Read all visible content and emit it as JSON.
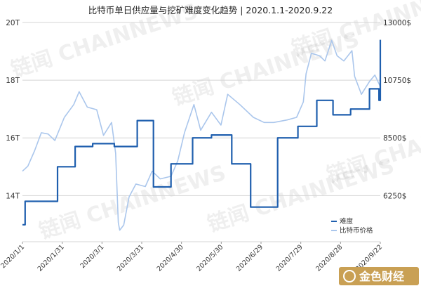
{
  "chart_data": {
    "type": "line",
    "title": "比特币单日供应量与挖矿难度变化趋势 | 2020.1.1-2020.9.22",
    "x_tick_labels": [
      "2020/1/1",
      "2020/1/31",
      "2020/3/1",
      "2020/3/31",
      "2020/4/30",
      "2020/5/30",
      "2020/6/29",
      "2020/7/29",
      "2020/8/28",
      "2020/9/22"
    ],
    "x_range": [
      "2020-01-01",
      "2020-09-22"
    ],
    "y_left": {
      "ticks": [
        "20T",
        "18T",
        "16T",
        "14T"
      ],
      "tick_values": [
        20,
        18,
        16,
        14
      ],
      "range": [
        12.4,
        20
      ],
      "unit": "T"
    },
    "y_right": {
      "ticks": [
        "13000$",
        "10750$",
        "8500$",
        "6250$"
      ],
      "tick_values": [
        13000,
        10750,
        8500,
        6250
      ],
      "range": [
        4450,
        13000
      ],
      "unit": "$"
    },
    "grid": true,
    "legend_position": "bottom-right",
    "series": [
      {
        "name": "难度",
        "axis": "left",
        "color": "#1f5fae",
        "step": true,
        "x": [
          "2020-01-01",
          "2020-01-03",
          "2020-01-14",
          "2020-01-27",
          "2020-02-09",
          "2020-02-22",
          "2020-03-09",
          "2020-03-26",
          "2020-04-07",
          "2020-04-20",
          "2020-05-06",
          "2020-05-20",
          "2020-06-04",
          "2020-06-18",
          "2020-07-08",
          "2020-07-23",
          "2020-08-06",
          "2020-08-18",
          "2020-08-31",
          "2020-09-14",
          "2020-09-21",
          "2020-09-22"
        ],
        "y": [
          12.99,
          13.8,
          13.8,
          15.0,
          15.7,
          15.8,
          15.7,
          16.6,
          14.3,
          15.1,
          16.0,
          16.1,
          15.1,
          13.6,
          16.0,
          16.4,
          17.3,
          16.8,
          17.0,
          17.7,
          17.3,
          19.4
        ]
      },
      {
        "name": "比特币价格",
        "axis": "right",
        "color": "#aac6ec",
        "step": false,
        "x": [
          "2020-01-01",
          "2020-01-05",
          "2020-01-10",
          "2020-01-15",
          "2020-01-20",
          "2020-01-25",
          "2020-02-01",
          "2020-02-08",
          "2020-02-12",
          "2020-02-18",
          "2020-02-25",
          "2020-03-01",
          "2020-03-07",
          "2020-03-10",
          "2020-03-12",
          "2020-03-13",
          "2020-03-16",
          "2020-03-20",
          "2020-03-25",
          "2020-04-01",
          "2020-04-06",
          "2020-04-12",
          "2020-04-20",
          "2020-04-25",
          "2020-04-30",
          "2020-05-07",
          "2020-05-12",
          "2020-05-20",
          "2020-05-27",
          "2020-06-01",
          "2020-06-10",
          "2020-06-20",
          "2020-06-28",
          "2020-07-05",
          "2020-07-15",
          "2020-07-22",
          "2020-07-27",
          "2020-07-29",
          "2020-08-02",
          "2020-08-08",
          "2020-08-12",
          "2020-08-17",
          "2020-08-21",
          "2020-08-26",
          "2020-09-01",
          "2020-09-03",
          "2020-09-08",
          "2020-09-14",
          "2020-09-18",
          "2020-09-22"
        ],
        "y": [
          7200,
          7400,
          8000,
          8700,
          8650,
          8400,
          9300,
          9800,
          10300,
          9700,
          9600,
          8600,
          9100,
          7900,
          5200,
          4900,
          5100,
          6200,
          6700,
          6600,
          7200,
          6900,
          7000,
          7600,
          8700,
          9800,
          8800,
          9500,
          9000,
          10200,
          9800,
          9300,
          9100,
          9100,
          9200,
          9300,
          9900,
          11000,
          11800,
          11700,
          11500,
          12300,
          11700,
          11500,
          11900,
          10900,
          10200,
          10700,
          10950,
          10500
        ]
      }
    ]
  },
  "brand": {
    "watermark": "链闻 CHAINNEWS",
    "logo_text": "金色财经"
  }
}
